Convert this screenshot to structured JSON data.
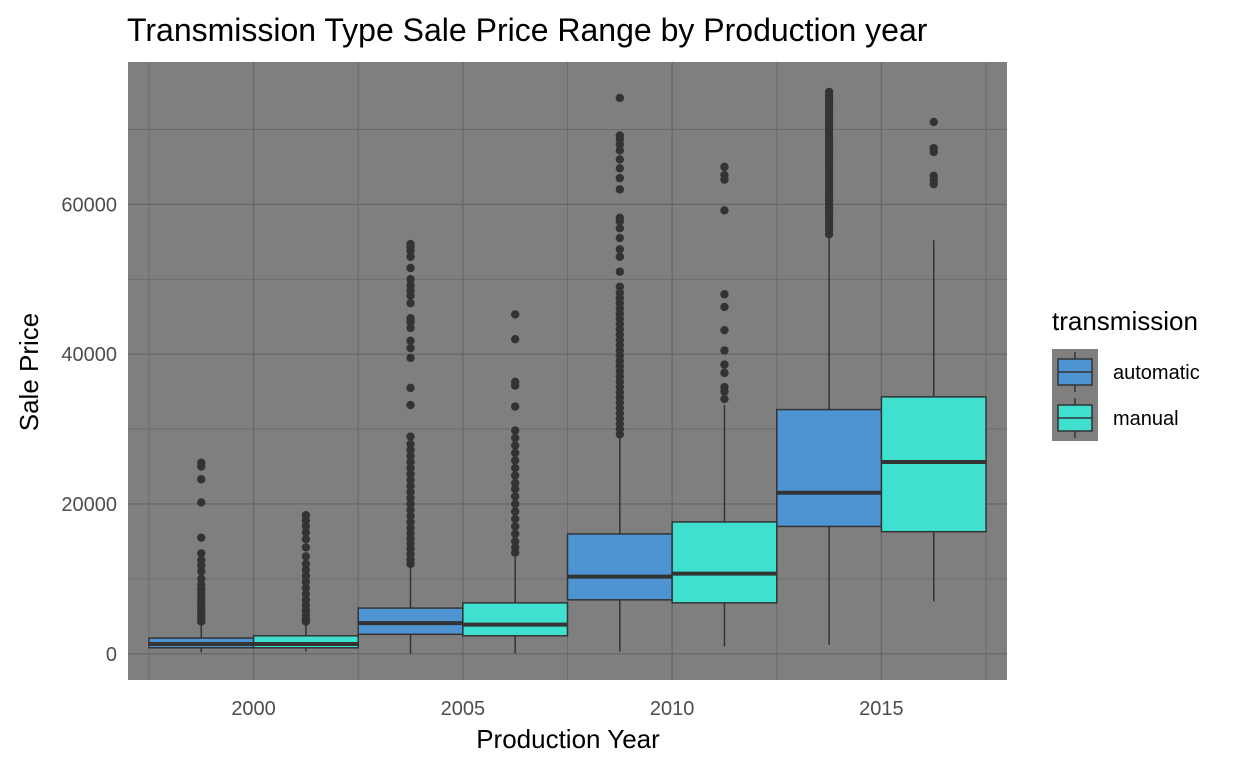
{
  "chart_data": {
    "type": "box",
    "title": "Transmission Type Sale Price Range by Production year",
    "xlabel": "Production Year",
    "ylabel": "Sale Price",
    "x_ticks": [
      "2000",
      "2005",
      "2010",
      "2015"
    ],
    "y_ticks": [
      "0",
      "20000",
      "40000",
      "60000"
    ],
    "xlim": [
      1997,
      2018
    ],
    "ylim": [
      -3500,
      79000
    ],
    "grid": true,
    "panel_color": "#7f7f7f",
    "legend": {
      "title": "transmission",
      "position": "right",
      "entries": [
        {
          "label": "automatic",
          "color": "#4e94d2"
        },
        {
          "label": "manual",
          "color": "#40e0d0"
        }
      ]
    },
    "series": [
      {
        "name": "automatic",
        "color": "#4e94d2",
        "boxes": [
          {
            "x": 2000,
            "q1": 800,
            "median": 1300,
            "q3": 2100,
            "lower_whisker": 200,
            "upper_whisker": 4000,
            "outliers": [
              4300,
              4700,
              5100,
              5600,
              6000,
              6400,
              6900,
              7400,
              8000,
              8600,
              9200,
              10000,
              11000,
              11800,
              12500,
              13400,
              15500,
              20200,
              23300,
              25000,
              25500
            ]
          },
          {
            "x": 2005,
            "q1": 2600,
            "median": 4100,
            "q3": 6100,
            "lower_whisker": 0,
            "upper_whisker": 11500,
            "outliers": [
              12000,
              12600,
              13300,
              14000,
              14700,
              15400,
              16100,
              16800,
              17600,
              18400,
              19200,
              20000,
              20800,
              21600,
              22400,
              23200,
              24000,
              24800,
              25600,
              26400,
              27200,
              28000,
              29000,
              33200,
              35500,
              39500,
              40800,
              41800,
              43500,
              44300,
              44800,
              46800,
              47800,
              48500,
              49200,
              50000,
              51500,
              53000,
              53800,
              54300,
              54700
            ]
          },
          {
            "x": 2010,
            "q1": 7200,
            "median": 10300,
            "q3": 16000,
            "lower_whisker": 300,
            "upper_whisker": 28800,
            "outliers": [
              29300,
              30000,
              30700,
              31400,
              32100,
              32800,
              33500,
              34200,
              34900,
              35600,
              36300,
              37000,
              37700,
              38400,
              39100,
              39800,
              40500,
              41200,
              41900,
              42600,
              43300,
              44000,
              44700,
              45400,
              46100,
              46800,
              47500,
              48200,
              49000,
              51000,
              53000,
              54000,
              55500,
              56800,
              57700,
              58200,
              62000,
              63500,
              64800,
              66000,
              67200,
              68000,
              68700,
              69200,
              74200
            ]
          },
          {
            "x": 2015,
            "q1": 17000,
            "median": 21500,
            "q3": 32600,
            "lower_whisker": 1200,
            "upper_whisker": 55500,
            "outliers": [
              56000,
              56500,
              57000,
              57500,
              58000,
              58500,
              59000,
              59500,
              60000,
              60500,
              61000,
              61500,
              62000,
              62500,
              63000,
              63500,
              64000,
              64500,
              65000,
              65500,
              66000,
              66500,
              67000,
              67500,
              68000,
              68500,
              69000,
              69500,
              70000,
              70500,
              71000,
              71500,
              72000,
              72500,
              73000,
              73500,
              74000,
              74500,
              75000
            ]
          }
        ]
      },
      {
        "name": "manual",
        "color": "#40e0d0",
        "boxes": [
          {
            "x": 2000,
            "q1": 800,
            "median": 1300,
            "q3": 2400,
            "lower_whisker": 300,
            "upper_whisker": 4100,
            "outliers": [
              4300,
              4700,
              5200,
              5800,
              6500,
              7200,
              8000,
              8800,
              9600,
              10400,
              11200,
              12000,
              13000,
              14200,
              15300,
              16200,
              17000,
              17800,
              18500
            ]
          },
          {
            "x": 2005,
            "q1": 2400,
            "median": 3900,
            "q3": 6800,
            "lower_whisker": 100,
            "upper_whisker": 13000,
            "outliers": [
              13500,
              14200,
              15000,
              16000,
              17000,
              18000,
              19000,
              20000,
              21000,
              22000,
              22800,
              23800,
              24800,
              25800,
              26800,
              27800,
              28800,
              29800,
              33000,
              35800,
              36300,
              42000,
              45300
            ]
          },
          {
            "x": 2010,
            "q1": 6800,
            "median": 10700,
            "q3": 17600,
            "lower_whisker": 1000,
            "upper_whisker": 33200,
            "outliers": [
              34000,
              35000,
              35600,
              37500,
              38600,
              40500,
              43200,
              46300,
              48000,
              59200,
              63300,
              63900,
              65000
            ]
          },
          {
            "x": 2015,
            "q1": 16300,
            "median": 25600,
            "q3": 34300,
            "lower_whisker": 7000,
            "upper_whisker": 55200,
            "outliers": [
              62700,
              63300,
              63800,
              67000,
              67500,
              71000
            ]
          }
        ]
      }
    ]
  }
}
